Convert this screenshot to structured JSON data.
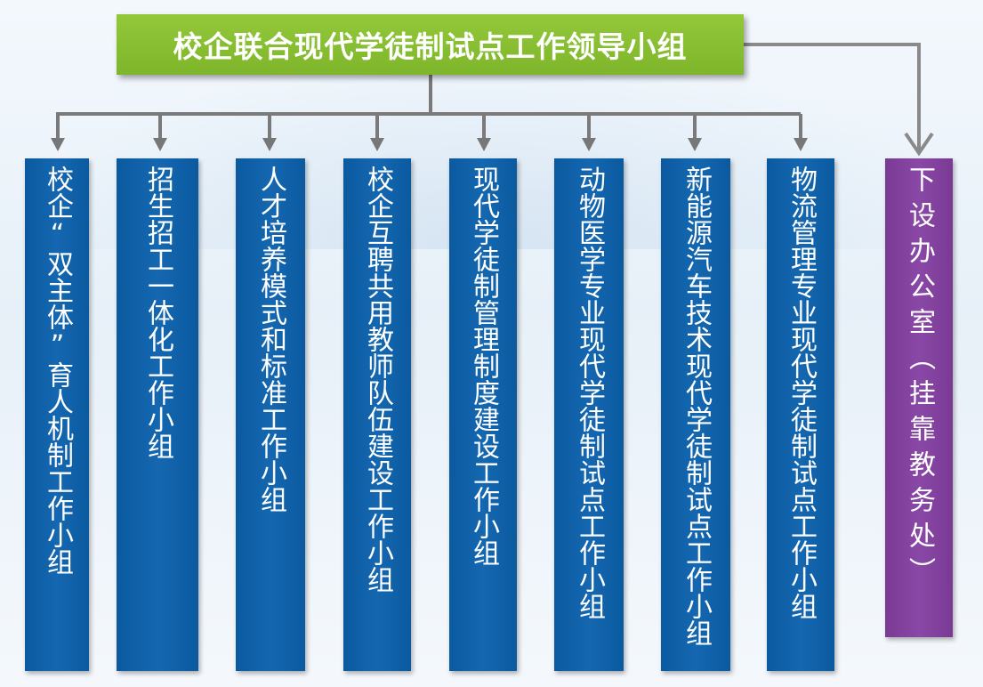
{
  "title": "校企联合现代学徒制试点工作领导小组",
  "groups": [
    "校企“双主体”育人机制工作小组",
    "招生招工一体化工作小组",
    "人才培养模式和标准工作小组",
    "校企互聘共用教师队伍建设工作小组",
    "现代学徒制管理制度建设工作小组",
    "动物医学专业现代学徒制试点工作小组",
    "新能源汽车技术现代学徒制试点工作小组",
    "物流管理专业现代学徒制试点工作小组"
  ],
  "office": "下设办公室（挂靠教务处）",
  "colors": {
    "title_bg": "#84bb2e",
    "group_bg": "#0b5aa0",
    "office_bg": "#7f3f9c",
    "connector": "#7a7a7a"
  }
}
